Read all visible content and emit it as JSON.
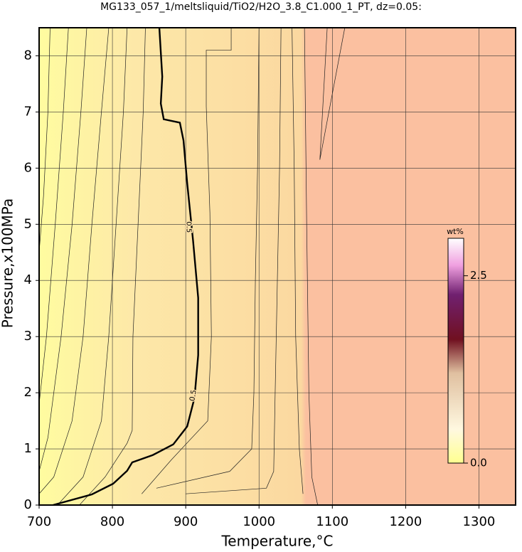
{
  "chart_data": {
    "type": "contour",
    "title": "MG133_057_1/meltsliquid/TiO2/H2O_3.8_C1.000_1_PT, dz=0.05:",
    "x_label": "Temperature,°C",
    "y_label": "Pressure,x100MPa",
    "xlim": [
      700,
      1350
    ],
    "ylim": [
      0,
      8.5
    ],
    "xticks": [
      700,
      800,
      900,
      1000,
      1100,
      1200,
      1300
    ],
    "yticks": [
      0,
      1,
      2,
      3,
      4,
      5,
      6,
      7,
      8
    ],
    "grid": true,
    "colorbar": {
      "label": "wt%",
      "lim": [
        0,
        3
      ],
      "ticks": [
        {
          "value": 0,
          "label": "0.0"
        },
        2.5
      ]
    },
    "labeled_contour": {
      "level": 0.5,
      "color": "#000000",
      "x": [
        719,
        772,
        801,
        820,
        827,
        855,
        883,
        902,
        912,
        917,
        917,
        910,
        902,
        897,
        892,
        870,
        866,
        868,
        864
      ],
      "y": [
        0,
        0.19,
        0.38,
        0.61,
        0.76,
        0.89,
        1.08,
        1.4,
        1.91,
        2.67,
        3.69,
        4.71,
        5.73,
        6.49,
        6.81,
        6.87,
        7.15,
        7.63,
        8.5
      ]
    },
    "contours": [
      {
        "x": [
          715,
          712,
          706,
          700
        ],
        "y": [
          8.5,
          7,
          5.5,
          4.5
        ]
      },
      {
        "x": [
          740,
          733,
          722,
          710,
          700
        ],
        "y": [
          8.5,
          7,
          5,
          3,
          1.8
        ]
      },
      {
        "x": [
          765,
          757,
          745,
          730,
          712,
          700
        ],
        "y": [
          8.5,
          7,
          5,
          3,
          1.2,
          0.6
        ]
      },
      {
        "x": [
          795,
          785,
          772,
          760,
          745,
          720,
          700
        ],
        "y": [
          8.5,
          7,
          5,
          3,
          1.5,
          0.5,
          0.2
        ]
      },
      {
        "x": [
          820,
          815,
          805,
          795,
          785,
          760,
          725
        ],
        "y": [
          8.5,
          7,
          5,
          3,
          1.5,
          0.5,
          0
        ]
      },
      {
        "x": [
          845,
          842,
          835,
          828,
          827,
          820,
          790,
          755
        ],
        "y": [
          8.5,
          7,
          5,
          3,
          1.33,
          1.1,
          0.5,
          0
        ]
      },
      {
        "x": [
          962,
          962,
          928,
          928,
          933,
          935,
          930,
          880,
          840
        ],
        "y": [
          8.5,
          8.1,
          8.1,
          7.1,
          5.2,
          3,
          1.5,
          0.8,
          0.2
        ]
      },
      {
        "x": [
          1000,
          998,
          995,
          993,
          990,
          960,
          860
        ],
        "y": [
          8.5,
          6,
          4,
          2,
          1,
          0.6,
          0.3
        ]
      },
      {
        "x": [
          1030,
          1028,
          1025,
          1022,
          1020,
          1010,
          900
        ],
        "y": [
          8.5,
          6,
          4,
          2,
          0.6,
          0.3,
          0.2
        ]
      },
      {
        "x": [
          1045,
          1048,
          1050,
          1055,
          1060
        ],
        "y": [
          8.5,
          6,
          3,
          1,
          0.2
        ]
      },
      {
        "x": [
          1062,
          1065,
          1068,
          1072,
          1080
        ],
        "y": [
          8.5,
          5,
          2,
          0.5,
          0
        ]
      },
      {
        "x": [
          1093,
          1083,
          1117
        ],
        "y": [
          8.5,
          6.15,
          8.5
        ]
      }
    ]
  }
}
